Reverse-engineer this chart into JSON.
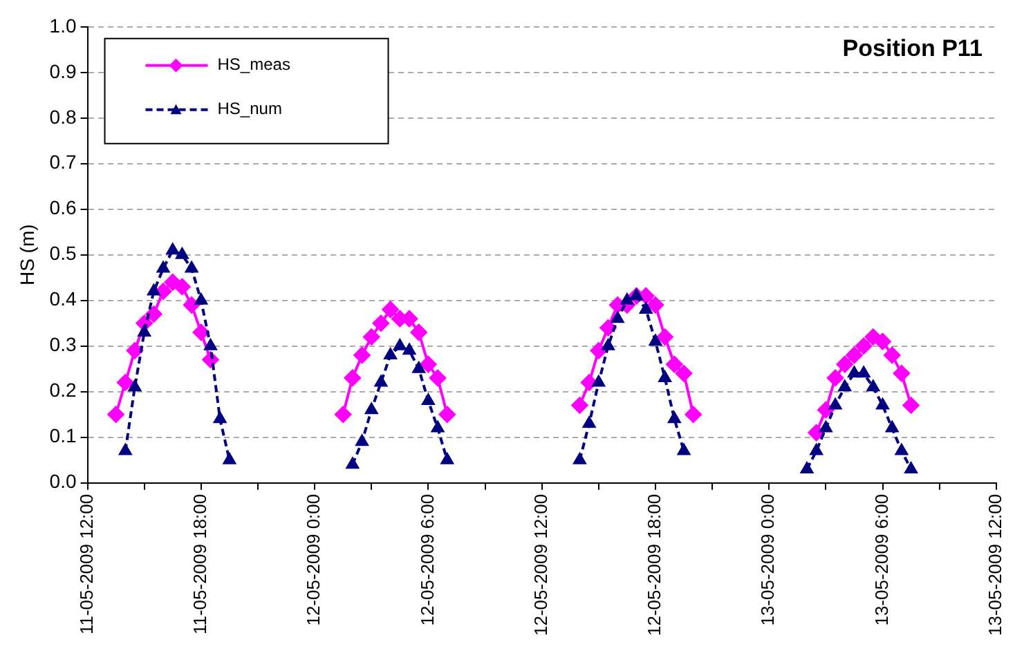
{
  "chart_data": {
    "type": "line",
    "title": "Position P11",
    "ylabel": "HS (m)",
    "xlim": [
      "2009-05-11T12:00",
      "2009-05-13T12:00"
    ],
    "xticks": [
      {
        "value": "2009-05-11T12:00",
        "label": "11-05-2009 12:00"
      },
      {
        "value": "2009-05-11T15:00",
        "label": null
      },
      {
        "value": "2009-05-11T18:00",
        "label": "11-05-2009 18:00"
      },
      {
        "value": "2009-05-11T21:00",
        "label": null
      },
      {
        "value": "2009-05-12T00:00",
        "label": "12-05-2009 0:00"
      },
      {
        "value": "2009-05-12T03:00",
        "label": null
      },
      {
        "value": "2009-05-12T06:00",
        "label": "12-05-2009 6:00"
      },
      {
        "value": "2009-05-12T09:00",
        "label": null
      },
      {
        "value": "2009-05-12T12:00",
        "label": "12-05-2009 12:00"
      },
      {
        "value": "2009-05-12T15:00",
        "label": null
      },
      {
        "value": "2009-05-12T18:00",
        "label": "12-05-2009 18:00"
      },
      {
        "value": "2009-05-12T21:00",
        "label": null
      },
      {
        "value": "2009-05-13T00:00",
        "label": "13-05-2009 0:00"
      },
      {
        "value": "2009-05-13T03:00",
        "label": null
      },
      {
        "value": "2009-05-13T06:00",
        "label": "13-05-2009 6:00"
      },
      {
        "value": "2009-05-13T09:00",
        "label": null
      },
      {
        "value": "2009-05-13T12:00",
        "label": "13-05-2009 12:00"
      }
    ],
    "ylim": [
      0,
      1
    ],
    "yticks": [
      {
        "value": 0,
        "label": "0.0"
      },
      0.1,
      0.2,
      0.3,
      0.4,
      0.5,
      0.6,
      0.7,
      0.8,
      0.9,
      {
        "value": 1,
        "label": "1.0"
      }
    ],
    "grid": "y",
    "legend": "top left",
    "series": [
      {
        "name": "HS_meas",
        "color": "#ff00ff",
        "marker": "diamond",
        "line_style": "solid",
        "x": [
          "2009-05-11T13:30",
          "2009-05-11T14:00",
          "2009-05-11T14:30",
          "2009-05-11T15:00",
          "2009-05-11T15:30",
          "2009-05-11T16:00",
          "2009-05-11T16:30",
          "2009-05-11T17:00",
          "2009-05-11T17:30",
          "2009-05-11T18:00",
          "2009-05-11T18:30",
          "2009-05-11T22:00",
          "2009-05-12T01:30",
          "2009-05-12T02:00",
          "2009-05-12T02:30",
          "2009-05-12T03:00",
          "2009-05-12T03:30",
          "2009-05-12T04:00",
          "2009-05-12T04:30",
          "2009-05-12T05:00",
          "2009-05-12T05:30",
          "2009-05-12T06:00",
          "2009-05-12T06:30",
          "2009-05-12T07:00",
          "2009-05-12T10:00",
          "2009-05-12T14:00",
          "2009-05-12T14:30",
          "2009-05-12T15:00",
          "2009-05-12T15:30",
          "2009-05-12T16:00",
          "2009-05-12T16:30",
          "2009-05-12T17:00",
          "2009-05-12T17:30",
          "2009-05-12T18:00",
          "2009-05-12T18:30",
          "2009-05-12T19:00",
          "2009-05-12T19:30",
          "2009-05-12T20:00",
          "2009-05-12T23:00",
          "2009-05-13T02:30",
          "2009-05-13T03:00",
          "2009-05-13T03:30",
          "2009-05-13T04:00",
          "2009-05-13T04:30",
          "2009-05-13T05:00",
          "2009-05-13T05:30",
          "2009-05-13T06:00",
          "2009-05-13T06:30",
          "2009-05-13T07:00",
          "2009-05-13T07:30"
        ],
        "values": [
          0.15,
          0.22,
          0.29,
          0.35,
          0.37,
          0.42,
          0.44,
          0.43,
          0.39,
          0.33,
          0.27,
          null,
          0.15,
          0.23,
          0.28,
          0.32,
          0.35,
          0.38,
          0.36,
          0.36,
          0.33,
          0.26,
          0.23,
          0.15,
          null,
          0.17,
          0.22,
          0.29,
          0.34,
          0.39,
          0.39,
          0.41,
          0.41,
          0.39,
          0.32,
          0.26,
          0.24,
          0.15,
          null,
          0.11,
          0.16,
          0.23,
          0.26,
          0.28,
          0.3,
          0.32,
          0.31,
          0.28,
          0.24,
          0.17
        ]
      },
      {
        "name": "HS_num",
        "color": "#000080",
        "marker": "triangle",
        "line_style": "dashed",
        "x": [
          "2009-05-11T14:00",
          "2009-05-11T14:30",
          "2009-05-11T15:00",
          "2009-05-11T15:30",
          "2009-05-11T16:00",
          "2009-05-11T16:30",
          "2009-05-11T17:00",
          "2009-05-11T17:30",
          "2009-05-11T18:00",
          "2009-05-11T18:30",
          "2009-05-11T19:00",
          "2009-05-11T19:30",
          "2009-05-11T22:00",
          "2009-05-12T02:00",
          "2009-05-12T02:30",
          "2009-05-12T03:00",
          "2009-05-12T03:30",
          "2009-05-12T04:00",
          "2009-05-12T04:30",
          "2009-05-12T05:00",
          "2009-05-12T05:30",
          "2009-05-12T06:00",
          "2009-05-12T06:30",
          "2009-05-12T07:00",
          "2009-05-12T10:00",
          "2009-05-12T14:00",
          "2009-05-12T14:30",
          "2009-05-12T15:00",
          "2009-05-12T15:30",
          "2009-05-12T16:00",
          "2009-05-12T16:30",
          "2009-05-12T17:00",
          "2009-05-12T17:30",
          "2009-05-12T18:00",
          "2009-05-12T18:30",
          "2009-05-12T19:00",
          "2009-05-12T19:30",
          "2009-05-12T23:00",
          "2009-05-13T02:00",
          "2009-05-13T02:30",
          "2009-05-13T03:00",
          "2009-05-13T03:30",
          "2009-05-13T04:00",
          "2009-05-13T04:30",
          "2009-05-13T05:00",
          "2009-05-13T05:30",
          "2009-05-13T06:00",
          "2009-05-13T06:30",
          "2009-05-13T07:00",
          "2009-05-13T07:30"
        ],
        "values": [
          0.07,
          0.21,
          0.33,
          0.42,
          0.47,
          0.51,
          0.5,
          0.47,
          0.4,
          0.3,
          0.14,
          0.05,
          null,
          0.04,
          0.09,
          0.16,
          0.22,
          0.28,
          0.3,
          0.29,
          0.25,
          0.18,
          0.12,
          0.05,
          null,
          0.05,
          0.13,
          0.22,
          0.3,
          0.36,
          0.4,
          0.41,
          0.38,
          0.31,
          0.23,
          0.14,
          0.07,
          null,
          0.03,
          0.07,
          0.12,
          0.17,
          0.21,
          0.24,
          0.24,
          0.21,
          0.17,
          0.12,
          0.07,
          0.03
        ]
      }
    ]
  }
}
